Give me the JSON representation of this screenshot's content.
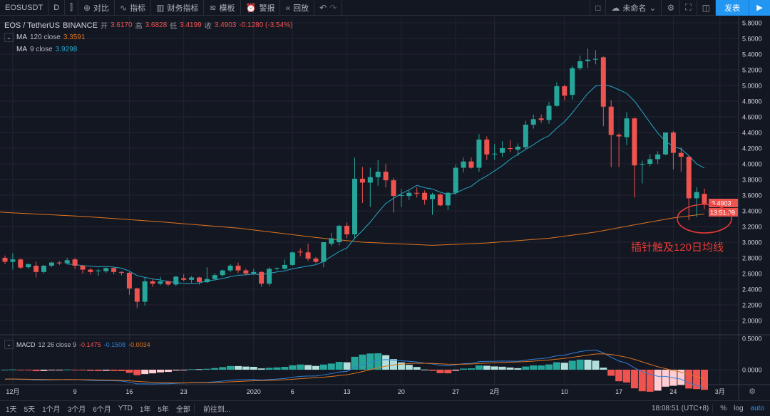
{
  "toolbar": {
    "symbol": "EOSUSDT",
    "interval": "D",
    "compare": "对比",
    "indicators": "指标",
    "financials": "财务指标",
    "templates": "模板",
    "alert": "警报",
    "replay": "回放",
    "layout_name": "未命名",
    "publish": "发表"
  },
  "legend": {
    "pair": "EOS / TetherUS",
    "exchange": "BINANCE",
    "open_label": "开",
    "open": "3.6170",
    "high_label": "高",
    "high": "3.6828",
    "low_label": "低",
    "low": "3.4199",
    "close_label": "收",
    "close": "3.4903",
    "change": "-0.1280 (-3.54%)",
    "ma120": {
      "label": "MA",
      "params": "120 close",
      "value": "3.3591"
    },
    "ma9": {
      "label": "MA",
      "params": "9 close",
      "value": "3.9298"
    }
  },
  "macd_legend": {
    "label": "MACD",
    "params": "12 26 close 9",
    "hist": "-0.1475",
    "macd": "-0.1508",
    "signal": "-0.0034"
  },
  "price_label": "3.4903",
  "countdown": "13:51:09",
  "annotation": "插针触及120日均线",
  "bottom": {
    "ranges": [
      "1天",
      "5天",
      "1个月",
      "3个月",
      "6个月",
      "YTD",
      "1年",
      "5年",
      "全部"
    ],
    "goto": "前往到...",
    "time": "18:08:51 (UTC+8)",
    "pct": "%",
    "log": "log",
    "auto": "auto"
  },
  "colors": {
    "up": "#26a69a",
    "down": "#ef5350",
    "ma9": "#26a6c8",
    "ma120": "#e0741e",
    "macd": "#2f7fd8",
    "signal": "#e0741e",
    "annotation": "#e53935",
    "accent": "#2196f3"
  },
  "chart_data": {
    "type": "candlestick",
    "title": "EOS / TetherUS · BINANCE · D",
    "price_ticks": [
      "2.0000",
      "2.2000",
      "2.4000",
      "2.6000",
      "2.8000",
      "3.0000",
      "3.2000",
      "3.4000",
      "3.6000",
      "3.8000",
      "4.0000",
      "4.2000",
      "4.4000",
      "4.6000",
      "4.8000",
      "5.0000",
      "5.2000",
      "5.4000",
      "5.6000",
      "5.8000"
    ],
    "ylim": [
      1.8,
      5.9
    ],
    "macd_ticks": [
      "0.5000",
      "0.0000"
    ],
    "time_ticks": [
      {
        "i": 1,
        "label": "12月"
      },
      {
        "i": 9,
        "label": "9"
      },
      {
        "i": 16,
        "label": "16"
      },
      {
        "i": 23,
        "label": "23"
      },
      {
        "i": 32,
        "label": "2020"
      },
      {
        "i": 37,
        "label": "6"
      },
      {
        "i": 44,
        "label": "13"
      },
      {
        "i": 51,
        "label": "20"
      },
      {
        "i": 58,
        "label": "27"
      },
      {
        "i": 63,
        "label": "2月"
      },
      {
        "i": 72,
        "label": "10"
      },
      {
        "i": 79,
        "label": "17"
      },
      {
        "i": 86,
        "label": "24"
      },
      {
        "i": 92,
        "label": "3月"
      }
    ],
    "ohlc": [
      [
        2.8,
        2.83,
        2.72,
        2.75
      ],
      [
        2.75,
        2.86,
        2.65,
        2.78
      ],
      [
        2.78,
        2.79,
        2.66,
        2.675
      ],
      [
        2.68,
        2.73,
        2.66,
        2.72
      ],
      [
        2.7,
        2.75,
        2.55,
        2.62
      ],
      [
        2.62,
        2.71,
        2.6,
        2.7
      ],
      [
        2.7,
        2.75,
        2.68,
        2.74
      ],
      [
        2.74,
        2.76,
        2.71,
        2.73
      ],
      [
        2.73,
        2.8,
        2.72,
        2.77
      ],
      [
        2.78,
        2.8,
        2.66,
        2.7
      ],
      [
        2.7,
        2.71,
        2.6,
        2.65
      ],
      [
        2.65,
        2.67,
        2.59,
        2.62
      ],
      [
        2.63,
        2.66,
        2.57,
        2.64
      ],
      [
        2.63,
        2.68,
        2.61,
        2.67
      ],
      [
        2.67,
        2.68,
        2.59,
        2.62
      ],
      [
        2.62,
        2.63,
        2.58,
        2.61
      ],
      [
        2.61,
        2.62,
        2.33,
        2.41
      ],
      [
        2.41,
        2.42,
        2.16,
        2.24
      ],
      [
        2.24,
        2.55,
        2.19,
        2.5
      ],
      [
        2.5,
        2.53,
        2.43,
        2.47
      ],
      [
        2.47,
        2.56,
        2.45,
        2.5
      ],
      [
        2.5,
        2.51,
        2.44,
        2.46
      ],
      [
        2.46,
        2.57,
        2.44,
        2.56
      ],
      [
        2.54,
        2.59,
        2.5,
        2.52
      ],
      [
        2.52,
        2.57,
        2.48,
        2.55
      ],
      [
        2.55,
        2.56,
        2.46,
        2.49
      ],
      [
        2.49,
        2.68,
        2.48,
        2.53
      ],
      [
        2.53,
        2.6,
        2.52,
        2.58
      ],
      [
        2.58,
        2.65,
        2.56,
        2.64
      ],
      [
        2.64,
        2.72,
        2.62,
        2.7
      ],
      [
        2.7,
        2.74,
        2.61,
        2.64
      ],
      [
        2.64,
        2.66,
        2.58,
        2.6
      ],
      [
        2.6,
        2.66,
        2.58,
        2.62
      ],
      [
        2.62,
        2.63,
        2.43,
        2.47
      ],
      [
        2.47,
        2.68,
        2.44,
        2.66
      ],
      [
        2.66,
        2.68,
        2.64,
        2.67
      ],
      [
        2.66,
        2.78,
        2.65,
        2.71
      ],
      [
        2.71,
        2.88,
        2.7,
        2.87
      ],
      [
        2.88,
        2.92,
        2.82,
        2.87
      ],
      [
        2.87,
        2.98,
        2.76,
        2.79
      ],
      [
        2.79,
        2.81,
        2.73,
        2.75
      ],
      [
        2.75,
        3.0,
        2.68,
        3.0
      ],
      [
        2.98,
        3.12,
        2.95,
        3.05
      ],
      [
        3.0,
        3.22,
        2.96,
        3.21
      ],
      [
        3.21,
        3.25,
        3.05,
        3.1
      ],
      [
        3.1,
        4.08,
        3.05,
        3.81
      ],
      [
        3.81,
        3.96,
        3.5,
        3.76
      ],
      [
        3.76,
        3.95,
        3.45,
        3.83
      ],
      [
        3.83,
        4.05,
        3.72,
        3.9
      ],
      [
        3.9,
        4.0,
        3.7,
        3.79
      ],
      [
        3.79,
        3.82,
        3.38,
        3.59
      ],
      [
        3.59,
        3.68,
        3.45,
        3.6
      ],
      [
        3.59,
        3.66,
        3.54,
        3.63
      ],
      [
        3.63,
        3.7,
        3.57,
        3.62
      ],
      [
        3.63,
        3.66,
        3.48,
        3.54
      ],
      [
        3.55,
        3.63,
        3.35,
        3.61
      ],
      [
        3.61,
        3.62,
        3.46,
        3.47
      ],
      [
        3.47,
        3.64,
        3.41,
        3.63
      ],
      [
        3.63,
        3.99,
        3.6,
        3.95
      ],
      [
        3.95,
        4.08,
        3.89,
        4.03
      ],
      [
        4.03,
        4.08,
        3.94,
        3.95
      ],
      [
        3.95,
        4.38,
        3.9,
        4.31
      ],
      [
        4.31,
        4.35,
        4.05,
        4.12
      ],
      [
        4.12,
        4.25,
        4.05,
        4.13
      ],
      [
        4.14,
        4.29,
        4.09,
        4.2
      ],
      [
        4.2,
        4.3,
        4.15,
        4.19
      ],
      [
        4.18,
        4.26,
        4.1,
        4.22
      ],
      [
        4.21,
        4.55,
        4.19,
        4.5
      ],
      [
        4.5,
        4.63,
        4.45,
        4.57
      ],
      [
        4.58,
        4.63,
        4.52,
        4.56
      ],
      [
        4.56,
        4.79,
        4.51,
        4.74
      ],
      [
        4.74,
        5.04,
        4.73,
        4.99
      ],
      [
        4.99,
        5.01,
        4.81,
        4.87
      ],
      [
        4.88,
        5.25,
        4.82,
        5.22
      ],
      [
        5.22,
        5.38,
        5.2,
        5.31
      ],
      [
        5.31,
        5.47,
        5.22,
        5.33
      ],
      [
        5.33,
        5.45,
        5.27,
        5.34
      ],
      [
        5.36,
        5.37,
        4.48,
        4.73
      ],
      [
        4.73,
        4.81,
        3.96,
        4.37
      ],
      [
        4.37,
        4.39,
        3.96,
        4.35
      ],
      [
        4.34,
        4.66,
        4.24,
        4.58
      ],
      [
        4.58,
        4.59,
        3.57,
        3.98
      ],
      [
        3.99,
        4.04,
        3.75,
        4.0
      ],
      [
        4.0,
        4.12,
        3.97,
        4.06
      ],
      [
        4.06,
        4.16,
        4.0,
        4.12
      ],
      [
        4.12,
        4.4,
        4.11,
        4.4
      ],
      [
        4.4,
        4.42,
        3.93,
        4.14
      ],
      [
        4.14,
        4.21,
        3.9,
        4.09
      ],
      [
        4.09,
        4.1,
        3.28,
        3.56
      ],
      [
        3.56,
        3.7,
        3.32,
        3.64
      ],
      [
        3.617,
        3.6828,
        3.4199,
        3.4903
      ]
    ],
    "ma120_keypoints": [
      [
        0,
        3.38
      ],
      [
        10,
        3.33
      ],
      [
        20,
        3.26
      ],
      [
        30,
        3.18
      ],
      [
        40,
        3.06
      ],
      [
        46,
        3.0
      ],
      [
        55,
        2.96
      ],
      [
        62,
        2.99
      ],
      [
        70,
        3.05
      ],
      [
        76,
        3.13
      ],
      [
        82,
        3.24
      ],
      [
        86,
        3.31
      ],
      [
        90,
        3.36
      ]
    ]
  }
}
